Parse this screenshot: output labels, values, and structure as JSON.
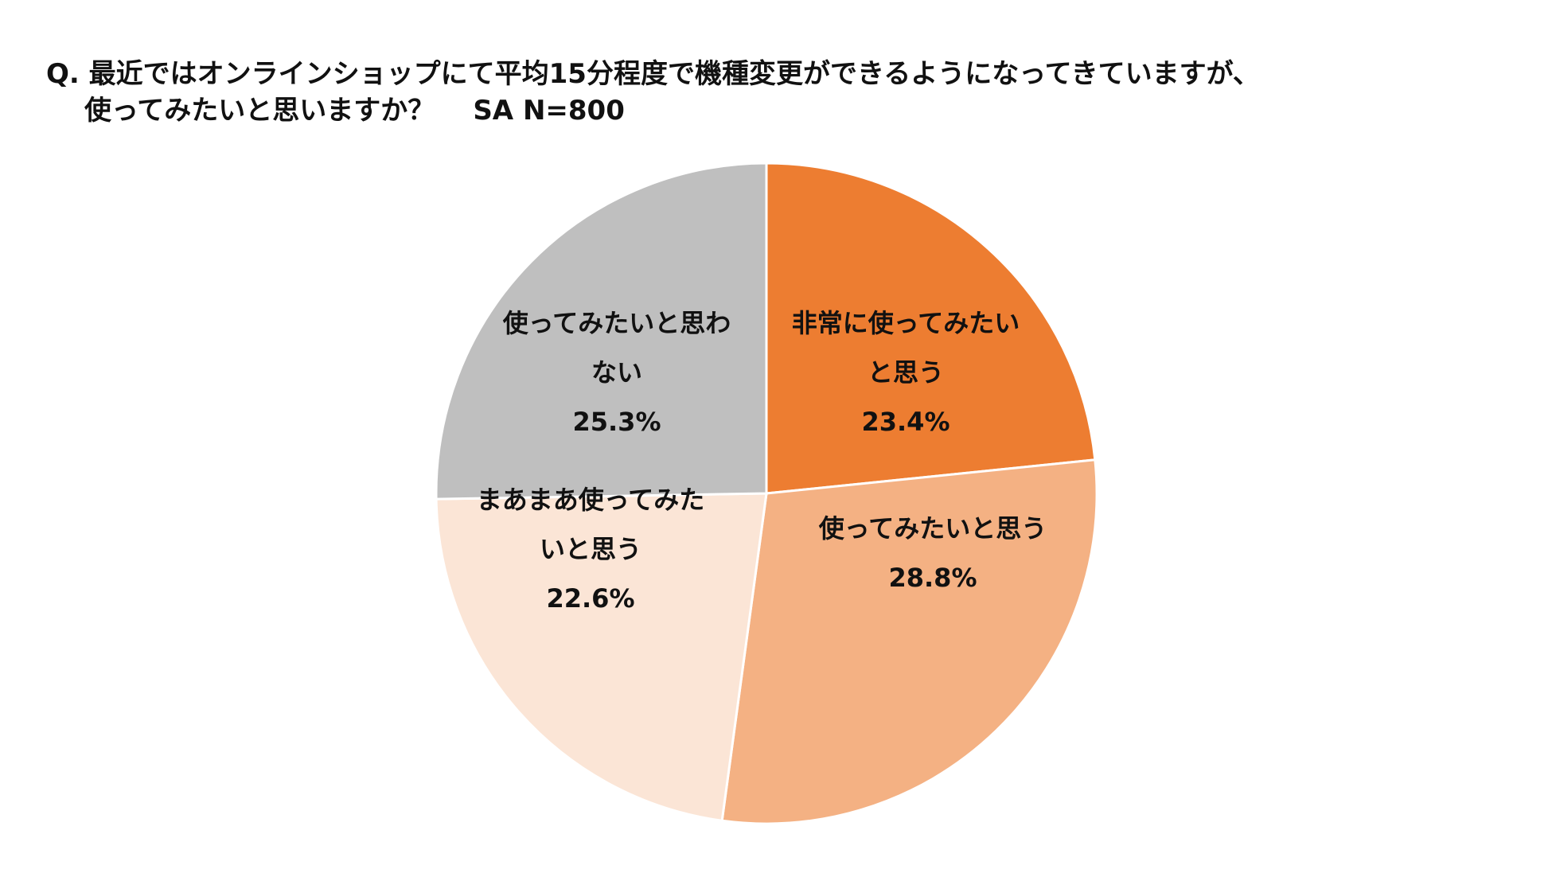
{
  "question": {
    "line1": "Q. 最近ではオンラインショップにて平均15分程度で機種変更ができるようになってきていますが、",
    "line2": "使ってみたいと思いますか？",
    "sample": "SA N=800"
  },
  "chart_data": {
    "type": "pie",
    "unit": "%",
    "start_angle": "12 o'clock",
    "direction": "clockwise",
    "slices": [
      {
        "name": "非常に使ってみたいと思う",
        "label_lines": [
          "非常に使ってみたい",
          "と思う"
        ],
        "value": 23.4,
        "value_label": "23.4%",
        "color": "#ED7D31"
      },
      {
        "name": "使ってみたいと思う",
        "label_lines": [
          "使ってみたいと思う"
        ],
        "value": 28.8,
        "value_label": "28.8%",
        "color": "#F4B183"
      },
      {
        "name": "まあまあ使ってみたいと思う",
        "label_lines": [
          "まあまあ使ってみた",
          "いと思う"
        ],
        "value": 22.6,
        "value_label": "22.6%",
        "color": "#FBE5D6"
      },
      {
        "name": "使ってみたいと思わない",
        "label_lines": [
          "使ってみたいと思わ",
          "ない"
        ],
        "value": 25.3,
        "value_label": "25.3%",
        "color": "#BFBFBF"
      }
    ]
  }
}
